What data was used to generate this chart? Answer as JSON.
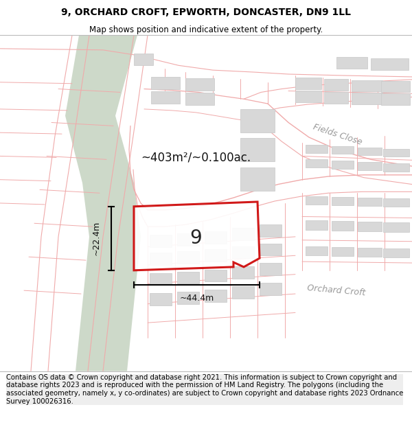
{
  "title_line1": "9, ORCHARD CROFT, EPWORTH, DONCASTER, DN9 1LL",
  "title_line2": "Map shows position and indicative extent of the property.",
  "footer_text": "Contains OS data © Crown copyright and database right 2021. This information is subject to Crown copyright and database rights 2023 and is reproduced with the permission of HM Land Registry. The polygons (including the associated geometry, namely x, y co-ordinates) are subject to Crown copyright and database rights 2023 Ordnance Survey 100026316.",
  "road_color": "#f0aaaa",
  "building_fill": "#d8d8d8",
  "building_edge": "#cccccc",
  "green_fill": "#c8d5c4",
  "green_edge": "#b8c8b4",
  "property_fill": "#ffffff",
  "property_edge": "#cc0000",
  "property_lw": 2.2,
  "area_text": "~403m²/~0.100ac.",
  "dim_v": "~22.4m",
  "dim_h": "~44.4m",
  "label_9": "9",
  "fields_close": "Fields Close",
  "orchard_croft": "Orchard Croft",
  "title_fs": 10,
  "subtitle_fs": 8.5,
  "footer_fs": 7.2,
  "label_color": "#aaaaaa",
  "dim_fs": 9,
  "area_fs": 12
}
